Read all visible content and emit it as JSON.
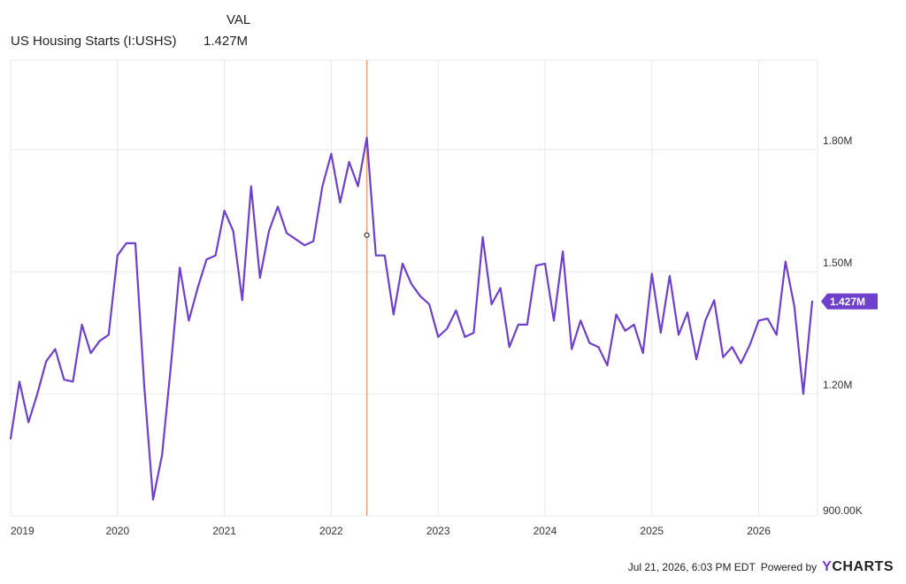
{
  "legend": {
    "header": "VAL",
    "series_name": "US Housing Starts (I:USHS)",
    "series_value": "1.427M"
  },
  "footer": {
    "timestamp": "Jul 21, 2026, 6:03 PM EDT",
    "powered_by": "Powered by",
    "brand_y": "Y",
    "brand_rest": "CHARTS"
  },
  "colors": {
    "series": "#6f3fce",
    "cursor": "#f0a070",
    "grid": "#e8e8e8",
    "badge_text": "#ffffff"
  },
  "chart_data": {
    "type": "line",
    "title": "",
    "xlabel": "",
    "ylabel": "",
    "x_range": [
      2019.0,
      2026.55
    ],
    "ylim": [
      900,
      2020
    ],
    "y_ticks": [
      900,
      1200,
      1500,
      1800
    ],
    "y_tick_labels": [
      "900.00K",
      "1.20M",
      "1.50M",
      "1.80M"
    ],
    "x_ticks": [
      2019,
      2020,
      2021,
      2022,
      2023,
      2024,
      2025,
      2026
    ],
    "x_tick_labels": [
      "2019",
      "2020",
      "2021",
      "2022",
      "2023",
      "2024",
      "2025",
      "2026"
    ],
    "last_value_label": "1.427M",
    "cursor_x": 2022.333,
    "cursor_y": 1590,
    "series": [
      {
        "name": "US Housing Starts (I:USHS)",
        "x": [
          2019.0,
          2019.083,
          2019.167,
          2019.25,
          2019.333,
          2019.417,
          2019.5,
          2019.583,
          2019.667,
          2019.75,
          2019.833,
          2019.917,
          2020.0,
          2020.083,
          2020.167,
          2020.25,
          2020.333,
          2020.417,
          2020.5,
          2020.583,
          2020.667,
          2020.75,
          2020.833,
          2020.917,
          2021.0,
          2021.083,
          2021.167,
          2021.25,
          2021.333,
          2021.417,
          2021.5,
          2021.583,
          2021.667,
          2021.75,
          2021.833,
          2021.917,
          2022.0,
          2022.083,
          2022.167,
          2022.25,
          2022.333,
          2022.417,
          2022.5,
          2022.583,
          2022.667,
          2022.75,
          2022.833,
          2022.917,
          2023.0,
          2023.083,
          2023.167,
          2023.25,
          2023.333,
          2023.417,
          2023.5,
          2023.583,
          2023.667,
          2023.75,
          2023.833,
          2023.917,
          2024.0,
          2024.083,
          2024.167,
          2024.25,
          2024.333,
          2024.417,
          2024.5,
          2024.583,
          2024.667,
          2024.75,
          2024.833,
          2024.917,
          2025.0,
          2025.083,
          2025.167,
          2025.25,
          2025.333,
          2025.417,
          2025.5,
          2025.583,
          2025.667,
          2025.75,
          2025.833,
          2025.917,
          2026.0,
          2026.083,
          2026.167,
          2026.25,
          2026.333,
          2026.417,
          2026.5
        ],
        "values": [
          1090,
          1230,
          1130,
          1200,
          1280,
          1310,
          1235,
          1230,
          1370,
          1300,
          1330,
          1345,
          1540,
          1570,
          1570,
          1220,
          940,
          1050,
          1270,
          1510,
          1380,
          1460,
          1530,
          1540,
          1650,
          1600,
          1430,
          1710,
          1485,
          1600,
          1660,
          1595,
          1580,
          1565,
          1575,
          1710,
          1790,
          1670,
          1770,
          1710,
          1830,
          1540,
          1540,
          1395,
          1520,
          1470,
          1440,
          1420,
          1340,
          1360,
          1405,
          1340,
          1350,
          1585,
          1420,
          1460,
          1315,
          1370,
          1370,
          1515,
          1520,
          1380,
          1550,
          1310,
          1380,
          1325,
          1315,
          1270,
          1395,
          1355,
          1370,
          1300,
          1495,
          1350,
          1490,
          1345,
          1400,
          1285,
          1380,
          1430,
          1290,
          1315,
          1275,
          1320,
          1380,
          1385,
          1345,
          1525,
          1415,
          1200,
          1427
        ]
      }
    ]
  }
}
